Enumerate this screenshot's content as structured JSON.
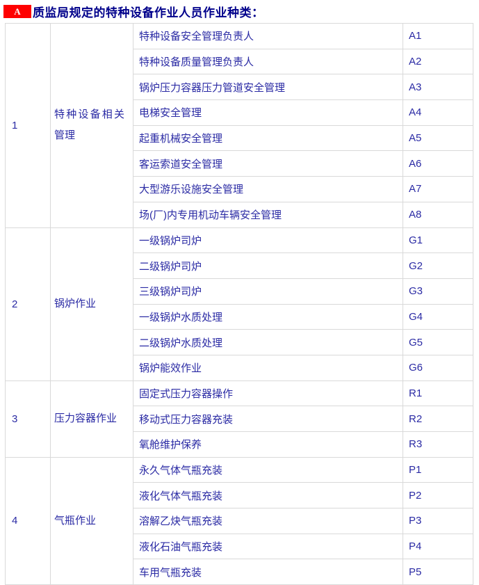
{
  "header": {
    "badge": "A",
    "title": "质监局规定的特种设备作业人员作业种类："
  },
  "colors": {
    "badge_bg": "#fe0000",
    "badge_text": "#ffffff",
    "title_text": "#00008b",
    "cell_text": "#2a2aa4",
    "border": "#d9d9d9"
  },
  "table": {
    "groups": [
      {
        "no": "1",
        "category": "特种设备相关管理",
        "jobs": [
          {
            "name": "特种设备安全管理负责人",
            "code": "A1"
          },
          {
            "name": "特种设备质量管理负责人",
            "code": "A2"
          },
          {
            "name": "锅炉压力容器压力管道安全管理",
            "code": "A3"
          },
          {
            "name": "电梯安全管理",
            "code": "A4"
          },
          {
            "name": "起重机械安全管理",
            "code": "A5"
          },
          {
            "name": "客运索道安全管理",
            "code": "A6"
          },
          {
            "name": "大型游乐设施安全管理",
            "code": "A7"
          },
          {
            "name": "场(厂)内专用机动车辆安全管理",
            "code": "A8"
          }
        ]
      },
      {
        "no": "2",
        "category": "锅炉作业",
        "jobs": [
          {
            "name": "一级锅炉司炉",
            "code": "G1"
          },
          {
            "name": "二级锅炉司炉",
            "code": "G2"
          },
          {
            "name": "三级锅炉司炉",
            "code": "G3"
          },
          {
            "name": "一级锅炉水质处理",
            "code": "G4"
          },
          {
            "name": "二级锅炉水质处理",
            "code": "G5"
          },
          {
            "name": "锅炉能效作业",
            "code": "G6"
          }
        ]
      },
      {
        "no": "3",
        "category": "压力容器作业",
        "jobs": [
          {
            "name": "固定式压力容器操作",
            "code": "R1"
          },
          {
            "name": "移动式压力容器充装",
            "code": "R2"
          },
          {
            "name": "氧舱维护保养",
            "code": "R3"
          }
        ]
      },
      {
        "no": "4",
        "category": "气瓶作业",
        "jobs": [
          {
            "name": "永久气体气瓶充装",
            "code": "P1"
          },
          {
            "name": "液化气体气瓶充装",
            "code": "P2"
          },
          {
            "name": "溶解乙炔气瓶充装",
            "code": "P3"
          },
          {
            "name": "液化石油气瓶充装",
            "code": "P4"
          },
          {
            "name": "车用气瓶充装",
            "code": "P5"
          }
        ]
      }
    ]
  }
}
